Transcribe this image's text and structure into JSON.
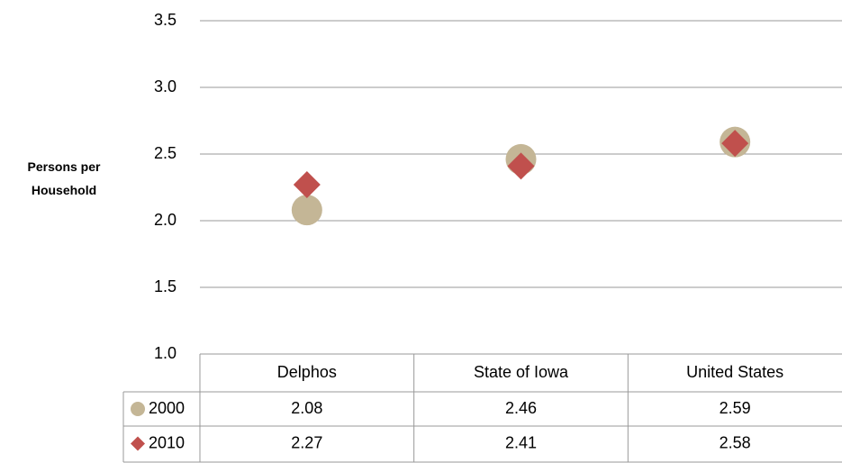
{
  "chart_data": {
    "type": "dot",
    "y_label": "Persons per Household",
    "categories": [
      "Delphos",
      "State of Iowa",
      "United States"
    ],
    "series": [
      {
        "name": "2000",
        "color": "#c4b696",
        "marker": "circle",
        "values": [
          2.08,
          2.46,
          2.59
        ]
      },
      {
        "name": "2010",
        "color": "#c0504d",
        "marker": "diamond",
        "values": [
          2.27,
          2.41,
          2.58
        ]
      }
    ],
    "ylim": [
      1.0,
      3.5
    ],
    "yticks": [
      {
        "value": 1.0,
        "label": "1.0"
      },
      1.5,
      {
        "value": 2.0,
        "label": "2.0"
      },
      2.5,
      {
        "value": 3.0,
        "label": "3.0"
      },
      3.5
    ],
    "grid": true,
    "data_table": true
  }
}
